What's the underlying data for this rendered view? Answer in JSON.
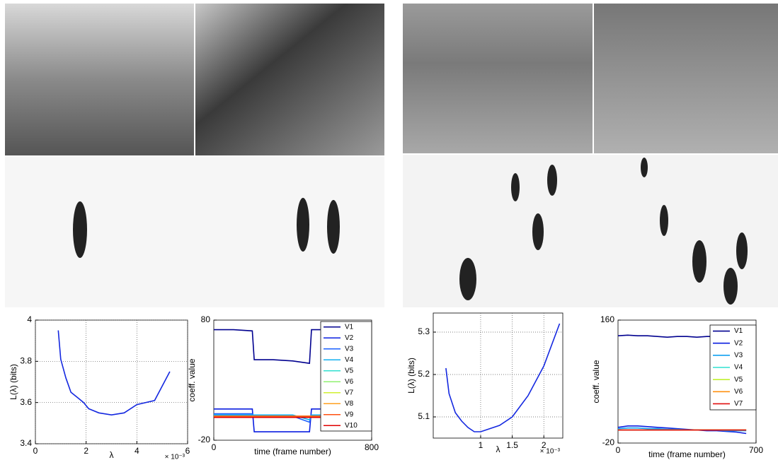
{
  "chart_data": [
    {
      "type": "line",
      "xlabel": "λ",
      "ylabel": "L(λ) (bits)",
      "x_multiplier": "× 10⁻³",
      "x": [
        0.9,
        1.0,
        1.2,
        1.4,
        1.7,
        1.9,
        2.1,
        2.5,
        3.0,
        3.5,
        4.0,
        4.7,
        5.3
      ],
      "series": [
        {
          "color": "#1428e0",
          "values": [
            3.95,
            3.81,
            3.72,
            3.65,
            3.62,
            3.6,
            3.57,
            3.55,
            3.54,
            3.55,
            3.59,
            3.61,
            3.75
          ]
        }
      ],
      "xlim": [
        0,
        6
      ],
      "xticks": [
        0,
        2,
        4,
        6
      ],
      "ylim": [
        3.4,
        4
      ],
      "yticks": [
        3.4,
        3.6,
        3.8,
        4
      ],
      "grid": true
    },
    {
      "type": "line",
      "xlabel": "time (frame number)",
      "ylabel": "coeff. value",
      "x": [
        0,
        100,
        195,
        205,
        300,
        400,
        485,
        495,
        540
      ],
      "series": [
        {
          "name": "V1",
          "color": "#00008f",
          "values": [
            72,
            72,
            71,
            47,
            47,
            46,
            44,
            72,
            72
          ]
        },
        {
          "name": "V2",
          "color": "#0a1ee0",
          "values": [
            6,
            6,
            6,
            -13,
            -13,
            -13,
            -13,
            6,
            6
          ]
        },
        {
          "name": "V3",
          "color": "#1a60ff",
          "values": [
            2,
            2,
            2,
            0,
            0,
            0,
            -5,
            1,
            1
          ]
        },
        {
          "name": "V4",
          "color": "#10b0f0",
          "values": [
            1,
            1,
            1,
            1,
            1,
            1,
            -3,
            1,
            1
          ]
        },
        {
          "name": "V5",
          "color": "#30e0d0",
          "values": [
            0,
            0,
            0,
            0,
            0,
            0,
            0,
            0,
            0
          ]
        },
        {
          "name": "V6",
          "color": "#90f070",
          "values": [
            0,
            0,
            0,
            0,
            0,
            0,
            0,
            0,
            0
          ]
        },
        {
          "name": "V7",
          "color": "#d0f030",
          "values": [
            0,
            0,
            0,
            0,
            0,
            0,
            0,
            0,
            0
          ]
        },
        {
          "name": "V8",
          "color": "#ffa020",
          "values": [
            0,
            0,
            0,
            0,
            0,
            0,
            0,
            0,
            0
          ]
        },
        {
          "name": "V9",
          "color": "#ff5010",
          "values": [
            0,
            0,
            0,
            0,
            0,
            0,
            0,
            0,
            0
          ]
        },
        {
          "name": "V10",
          "color": "#e00000",
          "values": [
            -1,
            -1,
            -1,
            -1,
            -1,
            -1,
            -1,
            -1,
            -1
          ]
        }
      ],
      "xlim": [
        0,
        800
      ],
      "xticks": [
        0,
        800
      ],
      "ylim": [
        -20,
        80
      ],
      "yticks": [
        -20,
        80
      ],
      "grid": false
    },
    {
      "type": "line",
      "xlabel": "λ",
      "ylabel": "L(λ) (bits)",
      "x_multiplier": "× 10⁻³",
      "x": [
        0.45,
        0.5,
        0.6,
        0.7,
        0.8,
        0.9,
        1.0,
        1.1,
        1.3,
        1.5,
        1.75,
        2.0,
        2.25
      ],
      "series": [
        {
          "color": "#1428e0",
          "values": [
            5.215,
            5.155,
            5.11,
            5.09,
            5.075,
            5.065,
            5.065,
            5.07,
            5.08,
            5.1,
            5.15,
            5.22,
            5.32
          ]
        }
      ],
      "xlim": [
        0.25,
        2.3
      ],
      "xticks": [
        1,
        1.5,
        2
      ],
      "ylim": [
        5.05,
        5.345
      ],
      "yticks": [
        5.1,
        5.2,
        5.3
      ],
      "grid": true
    },
    {
      "type": "line",
      "xlabel": "time (frame number)",
      "ylabel": "coeff. value",
      "x": [
        0,
        50,
        100,
        150,
        200,
        250,
        300,
        350,
        400,
        450,
        500,
        550,
        600,
        650
      ],
      "series": [
        {
          "name": "V1",
          "color": "#00008f",
          "values": [
            137,
            138,
            137,
            137,
            136,
            135,
            136,
            136,
            135,
            136,
            136,
            136,
            136,
            136
          ]
        },
        {
          "name": "V2",
          "color": "#0a1ee0",
          "values": [
            3,
            5,
            5,
            4,
            3,
            2,
            1,
            0,
            -1,
            -2,
            -2,
            -3,
            -4,
            -6
          ]
        },
        {
          "name": "V3",
          "color": "#10a0f0",
          "values": [
            1,
            2,
            2,
            1,
            1,
            0,
            0,
            -1,
            -1,
            -1,
            -1,
            -2,
            -2,
            -2
          ]
        },
        {
          "name": "V4",
          "color": "#30e0d0",
          "values": [
            -1,
            -1,
            -1,
            -1,
            -1,
            -1,
            -1,
            -1,
            -1,
            -1,
            -1,
            -1,
            -1,
            -1
          ]
        },
        {
          "name": "V5",
          "color": "#c0f030",
          "values": [
            -1,
            -1,
            -1,
            -1,
            -1,
            -1,
            -1,
            -1,
            -1,
            -1,
            -1,
            -1,
            -1,
            -1
          ]
        },
        {
          "name": "V6",
          "color": "#ff9010",
          "values": [
            -1,
            -1,
            -1,
            -1,
            -1,
            -1,
            -1,
            -1,
            -1,
            -1,
            -1,
            -1,
            -1,
            -1
          ]
        },
        {
          "name": "V7",
          "color": "#e01010",
          "values": [
            -1,
            -1,
            -1,
            -1,
            -1,
            -1,
            -1,
            -1,
            -1,
            -1,
            -1,
            -1,
            -1,
            -1
          ]
        }
      ],
      "xlim": [
        0,
        700
      ],
      "xticks": [
        0,
        700
      ],
      "ylim": [
        -20,
        160
      ],
      "yticks": [
        -20,
        160
      ],
      "grid": false
    }
  ]
}
